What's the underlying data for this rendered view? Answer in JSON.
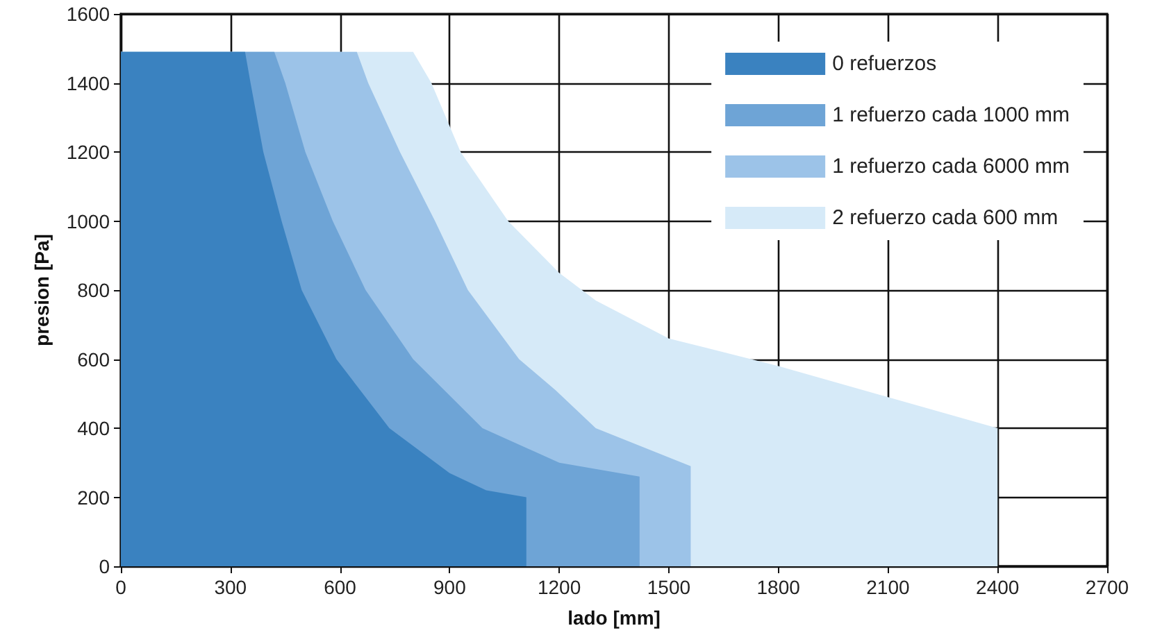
{
  "chart_data": {
    "type": "area",
    "xlabel": "lado [mm]",
    "ylabel": "presion [Pa]",
    "xlim": [
      0,
      2700
    ],
    "xticks": [
      0,
      300,
      600,
      900,
      1200,
      1500,
      1800,
      2100,
      2400,
      2700
    ],
    "ylim": [
      0,
      1600
    ],
    "yticks": [
      0,
      200,
      400,
      600,
      800,
      1000,
      1200,
      1400,
      1600
    ],
    "grid": true,
    "legend": "top right",
    "series": [
      {
        "name": "0 refuerzos",
        "color": "#3a82c0",
        "x": [
          0,
          340,
          355,
          390,
          440,
          495,
          590,
          735,
          900,
          1000,
          1110
        ],
        "values": [
          1490,
          1490,
          1400,
          1200,
          1000,
          800,
          600,
          400,
          270,
          220,
          200
        ]
      },
      {
        "name": "1 refuerzo cada 1000 mm",
        "color": "#6ea4d6",
        "x": [
          0,
          420,
          450,
          505,
          580,
          670,
          800,
          990,
          1200,
          1420
        ],
        "values": [
          1490,
          1490,
          1400,
          1200,
          1000,
          800,
          600,
          400,
          300,
          260
        ]
      },
      {
        "name": "1 refuerzo cada 6000 mm",
        "color": "#9cc3e8",
        "x": [
          0,
          646,
          677,
          764,
          860,
          950,
          1090,
          1190,
          1300,
          1560
        ],
        "values": [
          1490,
          1490,
          1400,
          1200,
          1000,
          800,
          600,
          510,
          400,
          290
        ]
      },
      {
        "name": "2 refuerzo cada 600 mm",
        "color": "#d6eaf8",
        "x": [
          0,
          800,
          850,
          930,
          1060,
          1200,
          1300,
          1500,
          1800,
          2100,
          2400
        ],
        "values": [
          1490,
          1490,
          1400,
          1200,
          1000,
          850,
          770,
          660,
          580,
          490,
          400
        ]
      }
    ]
  }
}
